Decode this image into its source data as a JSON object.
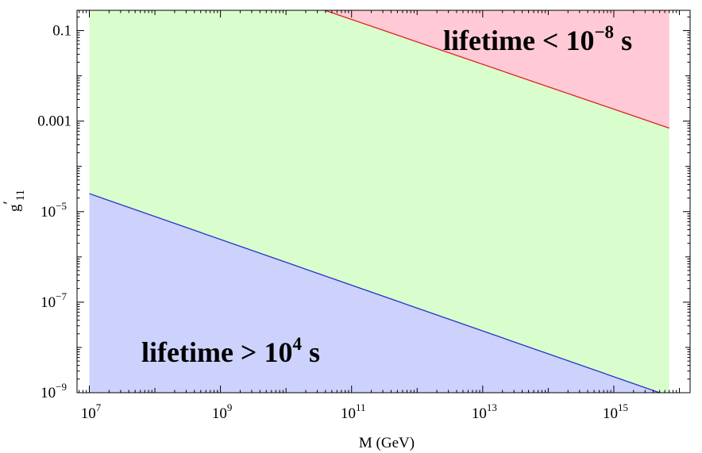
{
  "chart_data": {
    "type": "area",
    "xlabel": "M (GeV)",
    "ylabel": {
      "base": "g",
      "prime": "′",
      "sub": "11"
    },
    "x_scale": "log",
    "y_scale": "log",
    "xlim": [
      10000000.0,
      1e+16
    ],
    "ylim": [
      1e-09,
      1
    ],
    "x_ticks": [
      {
        "value": 10000000.0,
        "base": "10",
        "exp": "7"
      },
      {
        "value": 1000000000.0,
        "base": "10",
        "exp": "9"
      },
      {
        "value": 100000000000.0,
        "base": "10",
        "exp": "11"
      },
      {
        "value": 10000000000000.0,
        "base": "10",
        "exp": "13"
      },
      {
        "value": 1000000000000000.0,
        "base": "10",
        "exp": "15"
      }
    ],
    "y_ticks": [
      {
        "value": 0.1,
        "base": "0.1",
        "exp": ""
      },
      {
        "value": 0.001,
        "base": "0.001",
        "exp": ""
      },
      {
        "value": 1e-05,
        "base": "10",
        "exp": "−5"
      },
      {
        "value": 1e-07,
        "base": "10",
        "exp": "−7"
      },
      {
        "value": 1e-09,
        "base": "10",
        "exp": "−9"
      }
    ],
    "regions": [
      {
        "id": "lower",
        "color": "#ccd2fb",
        "label_prefix": "lifetime > 10",
        "label_exp": "4",
        "label_suffix": " s"
      },
      {
        "id": "middle",
        "color": "#d9fdcc",
        "label_prefix": "",
        "label_exp": "",
        "label_suffix": ""
      },
      {
        "id": "upper",
        "color": "#ffcad6",
        "label_prefix": "lifetime < 10",
        "label_exp": "−8",
        "label_suffix": " s"
      }
    ],
    "series": [
      {
        "id": "lower-boundary",
        "color": "#2233cc",
        "x": [
          10000000.0,
          5000000000000000.0
        ],
        "y": [
          2.5e-05,
          1e-09
        ]
      },
      {
        "id": "upper-boundary",
        "color": "#dd2222",
        "x": [
          3000000000.0,
          7000000000000000.0
        ],
        "y": [
          1,
          0.0007
        ]
      }
    ],
    "x_data_max": 7000000000000000.0
  }
}
